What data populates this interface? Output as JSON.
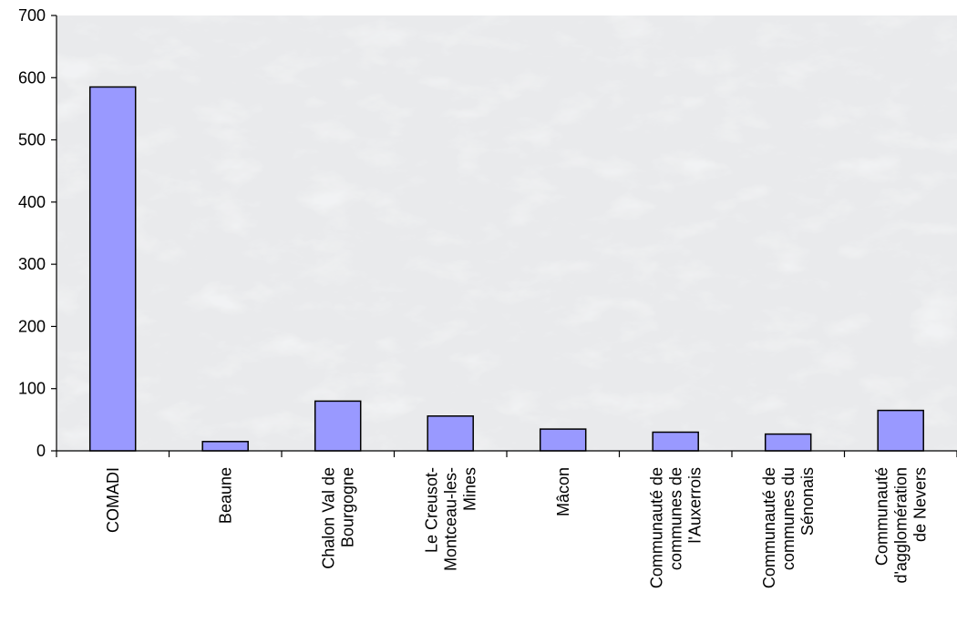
{
  "chart_data": {
    "type": "bar",
    "title": "",
    "xlabel": "",
    "ylabel": "",
    "ylim": [
      0,
      700
    ],
    "y_ticks": [
      0,
      100,
      200,
      300,
      400,
      500,
      600,
      700
    ],
    "grid": false,
    "legend": "none",
    "background": "marble texture",
    "bar_color": "#9999ff",
    "bar_edge_color": "#000000",
    "categories": [
      [
        "COMADI"
      ],
      [
        "Beaune"
      ],
      [
        "Chalon Val de",
        "Bourgogne"
      ],
      [
        "Le Creusot-",
        "Montceau-les-",
        "Mines"
      ],
      [
        "Mâcon"
      ],
      [
        "Communauté de",
        "communes de",
        "l'Auxerrois"
      ],
      [
        "Communauté de",
        "communes du",
        "Sénonais"
      ],
      [
        "Communauté",
        "d'agglomération",
        "de Nevers"
      ]
    ],
    "values": [
      585,
      15,
      80,
      56,
      35,
      30,
      27,
      65
    ]
  }
}
